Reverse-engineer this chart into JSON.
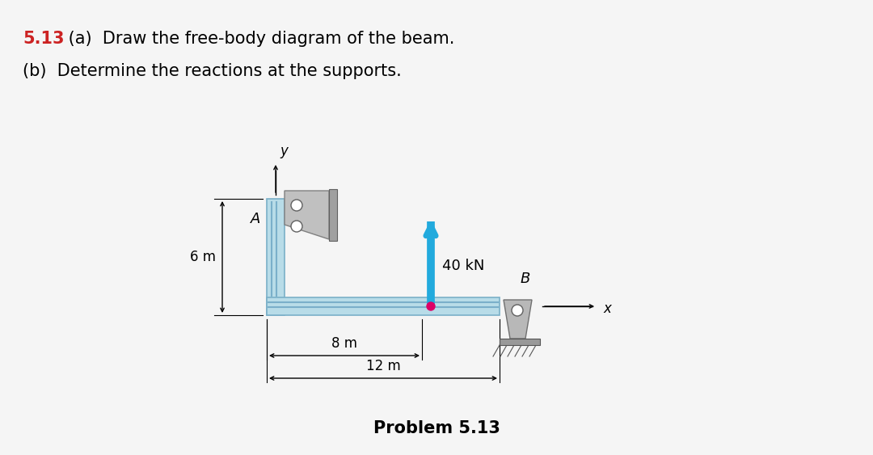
{
  "title_num": "5.13",
  "title_a": " (a)  Draw the free-body diagram of the beam.",
  "title_b": "(b)  Determine the reactions at the supports.",
  "problem_label": "Problem 5.13",
  "beam_color": "#b8dce8",
  "beam_edge_color": "#7ab0c8",
  "beam_inner_color": "#8ec8dc",
  "support_color": "#b8b8b8",
  "support_dark": "#888888",
  "force_color": "#22aadd",
  "force_dot_color": "#dd0066",
  "force_label": "40 kN",
  "dim_6m": "6 m",
  "dim_8m": "8 m",
  "dim_12m": "12 m",
  "label_A": "A",
  "label_B": "B",
  "label_x": "x",
  "label_y": "y",
  "bg_color": "#f5f5f5"
}
